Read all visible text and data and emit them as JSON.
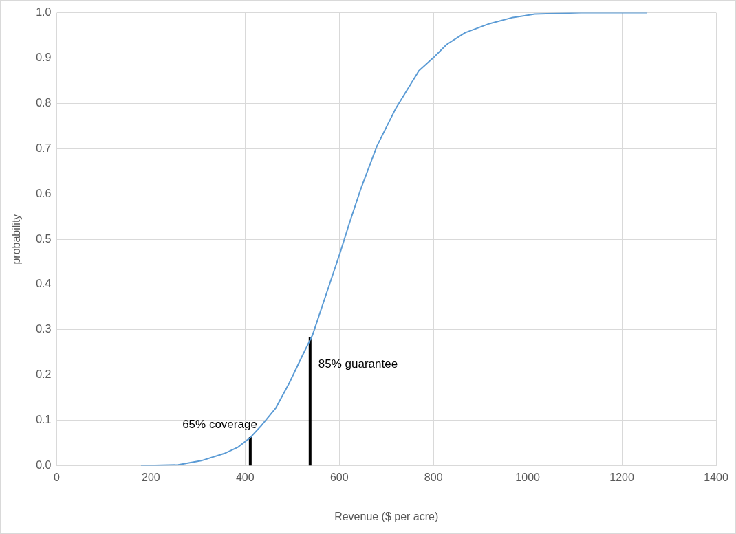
{
  "chart_data": {
    "type": "line",
    "xlabel": "Revenue ($ per acre)",
    "ylabel": "probability",
    "xlim": [
      0,
      1400
    ],
    "xticks": [
      0,
      200,
      400,
      600,
      800,
      1000,
      1200,
      1400
    ],
    "ylim": [
      0,
      1
    ],
    "yticks": [
      {
        "value": 0,
        "label": "0.0"
      },
      {
        "value": 0.1,
        "label": "0.1"
      },
      {
        "value": 0.2,
        "label": "0.2"
      },
      {
        "value": 0.3,
        "label": "0.3"
      },
      {
        "value": 0.4,
        "label": "0.4"
      },
      {
        "value": 0.5,
        "label": "0.5"
      },
      {
        "value": 0.6,
        "label": "0.6"
      },
      {
        "value": 0.7,
        "label": "0.7"
      },
      {
        "value": 0.8,
        "label": "0.8"
      },
      {
        "value": 0.9,
        "label": "0.9"
      },
      {
        "value": 1,
        "label": "1.0"
      }
    ],
    "grid": true,
    "legend": false,
    "marker": "none",
    "line_style": "solid",
    "series": [
      {
        "color": "#5b9bd5",
        "x": [
          179,
          258,
          307,
          356,
          385,
          410,
          435,
          465,
          494,
          523,
          543,
          572,
          602,
          621,
          646,
          680,
          720,
          769,
          800,
          828,
          867,
          916,
          966,
          1015,
          1113,
          1254
        ],
        "values": [
          0,
          0.002,
          0.011,
          0.027,
          0.041,
          0.061,
          0.089,
          0.127,
          0.183,
          0.246,
          0.288,
          0.378,
          0.471,
          0.534,
          0.612,
          0.706,
          0.789,
          0.872,
          0.901,
          0.93,
          0.956,
          0.975,
          0.989,
          0.997,
          1,
          1
        ]
      },
      {
        "color": "#000000",
        "x": [
          411,
          411
        ],
        "values": [
          0,
          0.063
        ]
      },
      {
        "color": "#000000",
        "x": [
          538,
          538
        ],
        "values": [
          0,
          0.283
        ]
      }
    ],
    "annotations": [
      {
        "text": "65% coverage",
        "x": 411,
        "y": 0.063
      },
      {
        "text": "85% guarantee",
        "x": 538,
        "y": 0.283
      }
    ]
  }
}
